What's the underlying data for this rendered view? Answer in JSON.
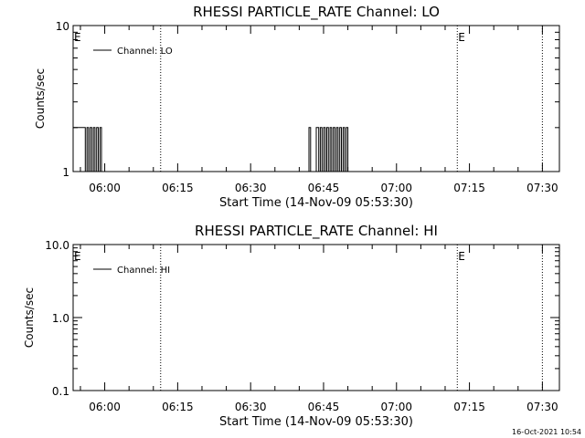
{
  "chart_data": [
    {
      "type": "line",
      "title": "RHESSI PARTICLE_RATE Channel: LO",
      "xlabel": "Start Time (14-Nov-09 05:53:30)",
      "ylabel": "Counts/sec",
      "x_ticks": [
        "06:00",
        "06:15",
        "06:30",
        "06:45",
        "07:00",
        "07:15",
        "07:30"
      ],
      "y_ticks": [
        "1",
        "10"
      ],
      "y_scale": "log",
      "ylim": [
        1,
        10
      ],
      "xlim": [
        "05:53:30",
        "07:33:30"
      ],
      "legend": {
        "placement": "top-left",
        "entries": [
          "Channel: LO"
        ]
      },
      "event_markers": [
        {
          "time": "05:53:30",
          "label": "E"
        },
        {
          "time": "06:11:30",
          "label": ""
        },
        {
          "time": "07:12:30",
          "label": "E"
        },
        {
          "time": "07:30:00",
          "label": ""
        }
      ],
      "series": [
        {
          "name": "Channel: LO",
          "x": [
            "05:53:30",
            "05:56:00",
            "05:56:00",
            "05:56:20",
            "05:56:20",
            "05:56:40",
            "05:56:40",
            "05:57:00",
            "05:57:00",
            "05:57:20",
            "05:57:20",
            "05:57:40",
            "05:57:40",
            "05:58:00",
            "05:58:00",
            "05:58:20",
            "05:58:20",
            "05:58:40",
            "05:58:40",
            "05:59:00",
            "05:59:00",
            "05:59:20",
            "05:59:20",
            "05:59:40",
            "05:59:40",
            "06:42:00",
            "06:42:00",
            "06:42:20",
            "06:42:20",
            "06:43:30",
            "06:43:30",
            "06:44:00",
            "06:44:00",
            "06:44:20",
            "06:44:20",
            "06:44:40",
            "06:44:40",
            "06:45:00",
            "06:45:00",
            "06:45:20",
            "06:45:20",
            "06:45:40",
            "06:45:40",
            "06:46:00",
            "06:46:00",
            "06:46:20",
            "06:46:20",
            "06:46:40",
            "06:46:40",
            "06:47:00",
            "06:47:00",
            "06:47:20",
            "06:47:20",
            "06:47:40",
            "06:47:40",
            "06:48:00",
            "06:48:00",
            "06:48:20",
            "06:48:20",
            "06:48:40",
            "06:48:40",
            "06:49:00",
            "06:49:00",
            "06:49:20",
            "06:49:20",
            "06:49:40",
            "06:49:40",
            "06:50:00",
            "06:50:00",
            "07:33:30"
          ],
          "values": [
            2,
            2,
            1,
            1,
            2,
            2,
            1,
            1,
            2,
            2,
            1,
            1,
            2,
            2,
            1,
            1,
            2,
            2,
            1,
            1,
            2,
            2,
            1,
            1,
            1,
            1,
            2,
            2,
            1,
            1,
            2,
            2,
            1,
            1,
            2,
            2,
            1,
            1,
            2,
            2,
            1,
            1,
            2,
            2,
            1,
            1,
            2,
            2,
            1,
            1,
            2,
            2,
            1,
            1,
            2,
            2,
            1,
            1,
            2,
            2,
            1,
            1,
            2,
            2,
            1,
            1,
            2,
            2,
            1,
            1
          ]
        }
      ]
    },
    {
      "type": "line",
      "title": "RHESSI PARTICLE_RATE Channel: HI",
      "xlabel": "Start Time (14-Nov-09 05:53:30)",
      "ylabel": "Counts/sec",
      "x_ticks": [
        "06:00",
        "06:15",
        "06:30",
        "06:45",
        "07:00",
        "07:15",
        "07:30"
      ],
      "y_ticks": [
        "0.1",
        "1.0",
        "10.0"
      ],
      "y_scale": "log",
      "ylim": [
        0.1,
        10
      ],
      "xlim": [
        "05:53:30",
        "07:33:30"
      ],
      "legend": {
        "placement": "top-left",
        "entries": [
          "Channel: HI"
        ]
      },
      "event_markers": [
        {
          "time": "05:53:30",
          "label": "E"
        },
        {
          "time": "06:11:30",
          "label": ""
        },
        {
          "time": "07:12:30",
          "label": "E"
        },
        {
          "time": "07:30:00",
          "label": ""
        }
      ],
      "series": [
        {
          "name": "Channel: HI",
          "x": [],
          "values": []
        }
      ]
    }
  ],
  "footer": {
    "timestamp": "16-Oct-2021 10:54"
  }
}
